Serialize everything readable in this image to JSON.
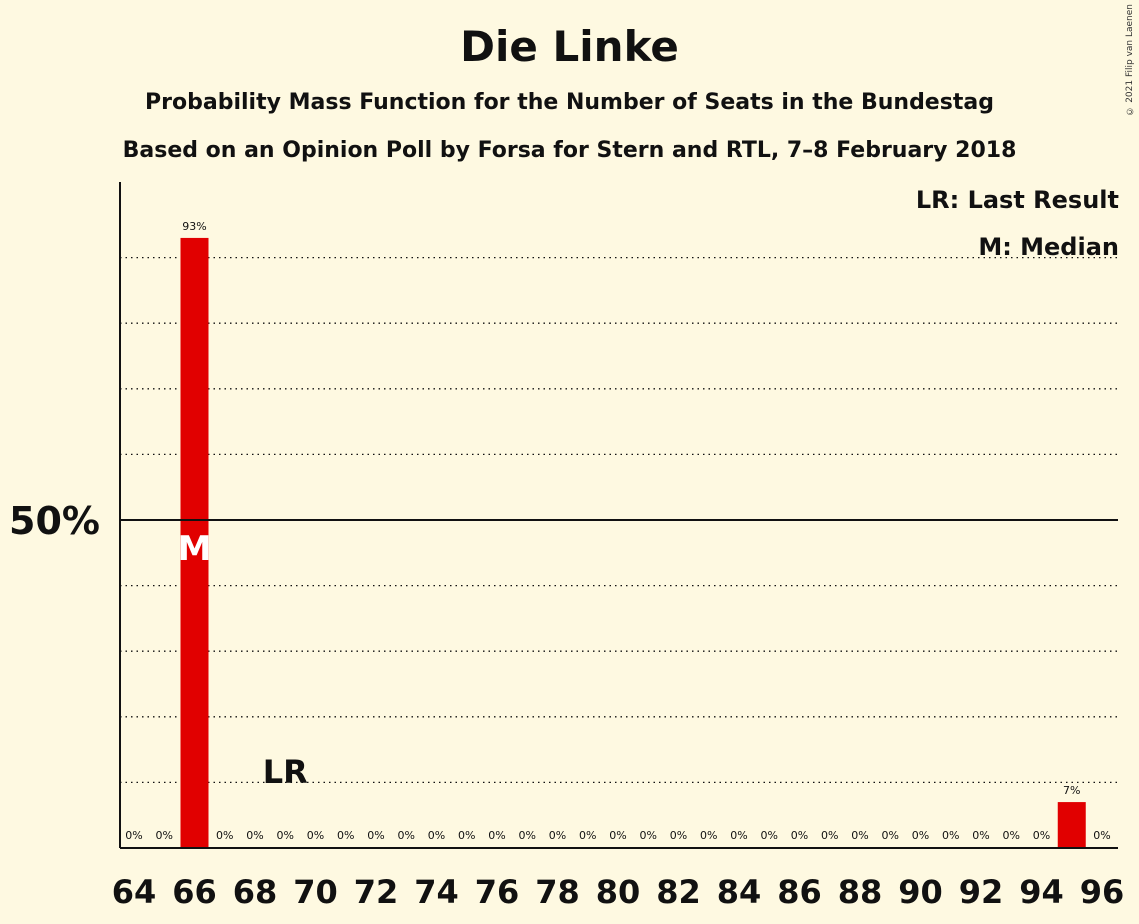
{
  "title": "Die Linke",
  "subtitle": "Probability Mass Function for the Number of Seats in the Bundestag",
  "subtitle2": "Based on an Opinion Poll by Forsa for Stern and RTL, 7–8 February 2018",
  "copyright": "© 2021 Filip van Laenen",
  "legend": {
    "last_result": "LR: Last Result",
    "median": "M: Median"
  },
  "colors": {
    "bar": "#e10000",
    "background": "#fef9e1"
  },
  "chart_data": {
    "type": "bar",
    "categories": [
      64,
      65,
      66,
      67,
      68,
      69,
      70,
      71,
      72,
      73,
      74,
      75,
      76,
      77,
      78,
      79,
      80,
      81,
      82,
      83,
      84,
      85,
      86,
      87,
      88,
      89,
      90,
      91,
      92,
      93,
      94,
      95,
      96
    ],
    "values": [
      0,
      0,
      93,
      0,
      0,
      0,
      0,
      0,
      0,
      0,
      0,
      0,
      0,
      0,
      0,
      0,
      0,
      0,
      0,
      0,
      0,
      0,
      0,
      0,
      0,
      0,
      0,
      0,
      0,
      0,
      0,
      7,
      0
    ],
    "labels": [
      "0%",
      "0%",
      "93%",
      "0%",
      "0%",
      "0%",
      "0%",
      "0%",
      "0%",
      "0%",
      "0%",
      "0%",
      "0%",
      "0%",
      "0%",
      "0%",
      "0%",
      "0%",
      "0%",
      "0%",
      "0%",
      "0%",
      "0%",
      "0%",
      "0%",
      "0%",
      "0%",
      "0%",
      "0%",
      "0%",
      "0%",
      "7%",
      "0%"
    ],
    "x_tick_labels": [
      "64",
      "66",
      "68",
      "70",
      "72",
      "74",
      "76",
      "78",
      "80",
      "82",
      "84",
      "86",
      "88",
      "90",
      "92",
      "94",
      "96"
    ],
    "y_tick_labels": [
      {
        "value": 50,
        "label": "50%"
      }
    ],
    "ylim": [
      0,
      100
    ],
    "gridlines": [
      10,
      20,
      30,
      40,
      60,
      70,
      80,
      90
    ],
    "median_seat": 66,
    "median_marker": "M",
    "last_result_seat": 69,
    "last_result_marker": "LR"
  }
}
